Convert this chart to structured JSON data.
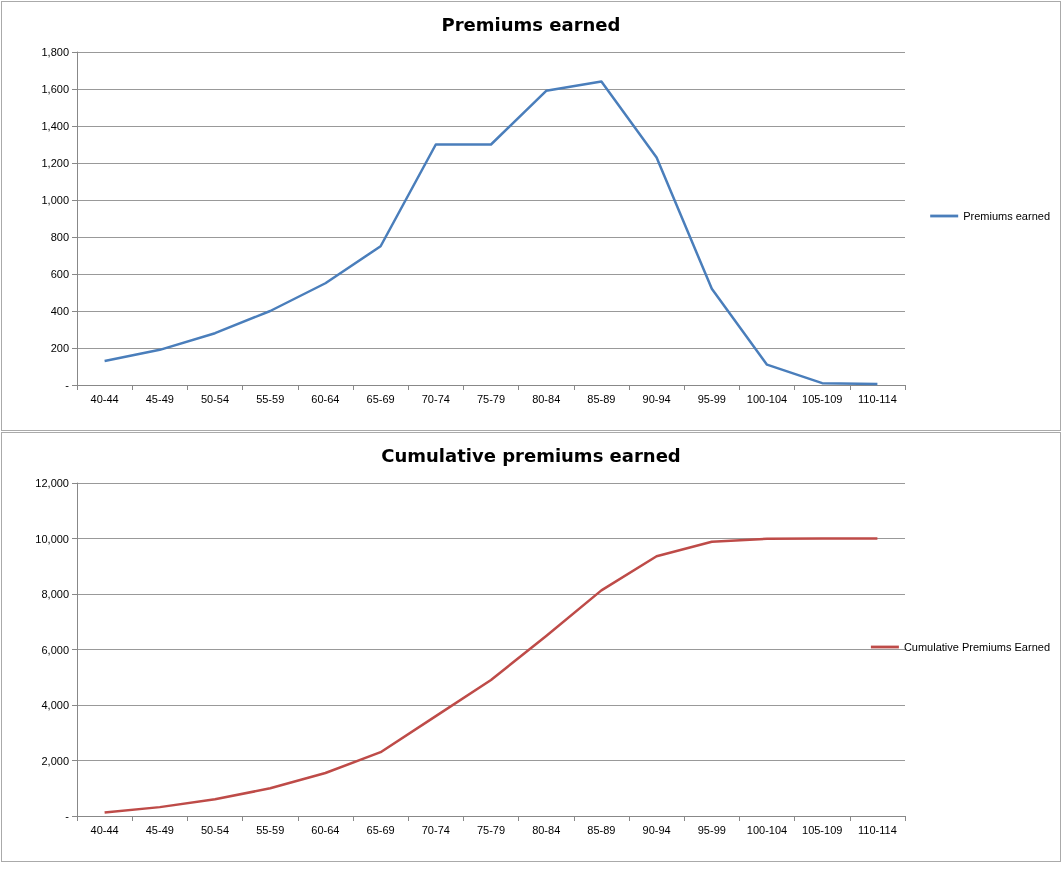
{
  "chart_data": [
    {
      "type": "line",
      "title": "Premiums earned",
      "categories": [
        "40-44",
        "45-49",
        "50-54",
        "55-59",
        "60-64",
        "65-69",
        "70-74",
        "75-79",
        "80-84",
        "85-89",
        "90-94",
        "95-99",
        "100-104",
        "105-109",
        "110-114"
      ],
      "series": [
        {
          "name": "Premiums earned",
          "color": "#4a7ebb",
          "values": [
            130,
            190,
            280,
            400,
            550,
            750,
            1300,
            1300,
            1590,
            1640,
            1230,
            520,
            110,
            10,
            5
          ]
        }
      ],
      "ylim": [
        0,
        1800
      ],
      "yticks": [
        {
          "value": 0,
          "label": "-"
        },
        {
          "value": 200,
          "label": "200"
        },
        {
          "value": 400,
          "label": "400"
        },
        {
          "value": 600,
          "label": "600"
        },
        {
          "value": 800,
          "label": "800"
        },
        {
          "value": 1000,
          "label": "1,000"
        },
        {
          "value": 1200,
          "label": "1,200"
        },
        {
          "value": 1400,
          "label": "1,400"
        },
        {
          "value": 1600,
          "label": "1,600"
        },
        {
          "value": 1800,
          "label": "1,800"
        }
      ],
      "grid": "y",
      "legend": "right",
      "marker": "none"
    },
    {
      "type": "line",
      "title": "Cumulative premiums earned",
      "categories": [
        "40-44",
        "45-49",
        "50-54",
        "55-59",
        "60-64",
        "65-69",
        "70-74",
        "75-79",
        "80-84",
        "85-89",
        "90-94",
        "95-99",
        "100-104",
        "105-109",
        "110-114"
      ],
      "series": [
        {
          "name": "Cumulative Premiums Earned",
          "color": "#be4b48",
          "values": [
            130,
            320,
            600,
            1000,
            1550,
            2300,
            3600,
            4900,
            6490,
            8130,
            9360,
            9880,
            9990,
            10000,
            10000
          ]
        }
      ],
      "ylim": [
        0,
        12000
      ],
      "yticks": [
        {
          "value": 0,
          "label": "-"
        },
        {
          "value": 2000,
          "label": "2,000"
        },
        {
          "value": 4000,
          "label": "4,000"
        },
        {
          "value": 6000,
          "label": "6,000"
        },
        {
          "value": 8000,
          "label": "8,000"
        },
        {
          "value": 10000,
          "label": "10,000"
        },
        {
          "value": 12000,
          "label": "12,000"
        }
      ],
      "grid": "y",
      "legend": "right",
      "marker": "none"
    }
  ]
}
